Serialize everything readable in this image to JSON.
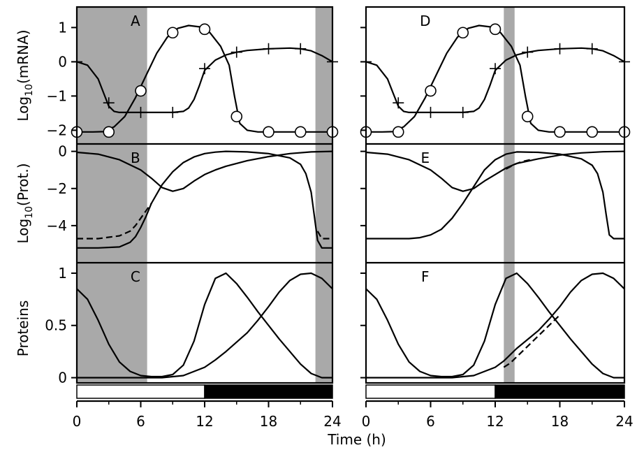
{
  "labels": {
    "x_axis": "Time (h)",
    "y_axis_row1": "Log",
    "y_axis_row1_sub": "10",
    "y_axis_row1_tail": "(mRNA)",
    "y_axis_row2": "Log",
    "y_axis_row2_sub": "10",
    "y_axis_row2_tail": "(Prot.)",
    "y_axis_row3": "Proteins"
  },
  "chart_data": {
    "type": "line",
    "x_ticks": [
      "0",
      "6",
      "12",
      "18",
      "24"
    ],
    "xlim": [
      0,
      24
    ],
    "y_ticks": {
      "mrna": [
        "1",
        "0",
        "−1",
        "−2"
      ],
      "prot": [
        "0",
        "−2",
        "−4"
      ],
      "proteins": [
        "1",
        "0.5",
        "0"
      ]
    },
    "ylim": {
      "mrna": [
        -2.4,
        1.6
      ],
      "prot": [
        -6,
        0.4
      ],
      "proteins": [
        -0.05,
        1.1
      ]
    },
    "light_dark_bar": {
      "left": {
        "light": [
          0,
          12
        ],
        "dark": [
          12,
          24
        ]
      },
      "right": {
        "light": [
          0,
          12
        ],
        "dark": [
          12,
          24
        ]
      }
    },
    "panels": [
      {
        "letter": "A",
        "row": "mrna",
        "side": "left",
        "shaded": [
          [
            0,
            6.6
          ],
          [
            22.4,
            24
          ]
        ],
        "series": [
          {
            "style": "solid",
            "marker": "circle",
            "x": [
              0,
              1.5,
              2.5,
              3.5,
              4.5,
              5.5,
              6.5,
              7.5,
              8.5,
              9.5,
              10.5,
              11.5,
              12.5,
              13.5,
              14.3,
              14.8,
              15.3,
              16,
              17,
              18,
              20,
              22,
              24
            ],
            "y": [
              -2.05,
              -2.05,
              -2.04,
              -1.9,
              -1.6,
              -1.05,
              -0.4,
              0.25,
              0.72,
              0.98,
              1.06,
              1.02,
              0.85,
              0.45,
              -0.1,
              -1.0,
              -1.8,
              -2.0,
              -2.05,
              -2.05,
              -2.05,
              -2.05,
              -2.05
            ],
            "marker_x": [
              0,
              3,
              6,
              9,
              12,
              15,
              18,
              21,
              24
            ],
            "marker_y": [
              -2.05,
              -2.05,
              -0.85,
              0.85,
              0.95,
              -1.6,
              -2.05,
              -2.05,
              -2.05
            ]
          },
          {
            "style": "solid",
            "marker": "plus",
            "x": [
              0,
              1,
              2,
              2.5,
              3,
              3.5,
              4,
              5,
              6,
              7,
              8,
              9,
              10,
              10.5,
              11,
              11.5,
              12,
              13,
              14,
              15,
              16,
              18,
              20,
              21,
              22,
              23,
              24
            ],
            "y": [
              0,
              -0.1,
              -0.5,
              -0.9,
              -1.3,
              -1.45,
              -1.48,
              -1.48,
              -1.48,
              -1.48,
              -1.48,
              -1.48,
              -1.45,
              -1.35,
              -1.1,
              -0.7,
              -0.25,
              0.05,
              0.2,
              0.28,
              0.33,
              0.38,
              0.4,
              0.38,
              0.32,
              0.18,
              0.0
            ],
            "marker_x": [
              0,
              3,
              6,
              9,
              12,
              15,
              18,
              21,
              24
            ],
            "marker_y": [
              0,
              -1.2,
              -1.48,
              -1.48,
              -0.2,
              0.28,
              0.38,
              0.38,
              0
            ]
          }
        ]
      },
      {
        "letter": "D",
        "row": "mrna",
        "side": "right",
        "shaded": [
          [
            12.8,
            13.8
          ]
        ],
        "series": [
          {
            "style": "solid",
            "marker": "circle",
            "x": [
              0,
              1.5,
              2.5,
              3.5,
              4.5,
              5.5,
              6.5,
              7.5,
              8.5,
              9.5,
              10.5,
              11.5,
              12.5,
              13.5,
              14.3,
              14.8,
              15.3,
              16,
              17,
              18,
              20,
              22,
              24
            ],
            "y": [
              -2.05,
              -2.05,
              -2.04,
              -1.9,
              -1.6,
              -1.05,
              -0.4,
              0.25,
              0.72,
              0.98,
              1.06,
              1.02,
              0.85,
              0.45,
              -0.1,
              -1.0,
              -1.8,
              -2.0,
              -2.05,
              -2.05,
              -2.05,
              -2.05,
              -2.05
            ],
            "marker_x": [
              0,
              3,
              6,
              9,
              12,
              15,
              18,
              21,
              24
            ],
            "marker_y": [
              -2.05,
              -2.05,
              -0.85,
              0.85,
              0.95,
              -1.6,
              -2.05,
              -2.05,
              -2.05
            ]
          },
          {
            "style": "solid",
            "marker": "plus",
            "x": [
              0,
              1,
              2,
              2.5,
              3,
              3.5,
              4,
              5,
              6,
              7,
              8,
              9,
              10,
              10.5,
              11,
              11.5,
              12,
              13,
              14,
              15,
              16,
              18,
              20,
              21,
              22,
              23,
              24
            ],
            "y": [
              0,
              -0.1,
              -0.5,
              -0.9,
              -1.3,
              -1.45,
              -1.48,
              -1.48,
              -1.48,
              -1.48,
              -1.48,
              -1.48,
              -1.45,
              -1.35,
              -1.1,
              -0.7,
              -0.25,
              0.05,
              0.2,
              0.28,
              0.33,
              0.38,
              0.4,
              0.38,
              0.32,
              0.18,
              0.0
            ],
            "marker_x": [
              0,
              3,
              6,
              9,
              12,
              15,
              18,
              21,
              24
            ],
            "marker_y": [
              0,
              -1.2,
              -1.48,
              -1.48,
              -0.2,
              0.28,
              0.38,
              0.38,
              0
            ]
          }
        ]
      },
      {
        "letter": "B",
        "row": "prot",
        "side": "left",
        "shaded": [
          [
            0,
            6.6
          ],
          [
            22.4,
            24
          ]
        ],
        "series": [
          {
            "style": "solid",
            "x": [
              0,
              2,
              4,
              6,
              7,
              8,
              9,
              10,
              11,
              12,
              13,
              14,
              16,
              18,
              20,
              22,
              24
            ],
            "y": [
              -0.05,
              -0.15,
              -0.45,
              -1.0,
              -1.45,
              -1.95,
              -2.15,
              -2.0,
              -1.6,
              -1.25,
              -1.0,
              -0.8,
              -0.5,
              -0.28,
              -0.12,
              -0.03,
              0.0
            ]
          },
          {
            "style": "solid",
            "x": [
              0,
              2,
              4,
              5,
              5.5,
              6,
              6.5,
              7,
              8,
              9,
              10,
              11,
              12,
              13,
              14,
              16,
              18,
              20,
              21,
              21.5,
              22,
              22.3,
              22.6,
              23,
              24
            ],
            "y": [
              -5.2,
              -5.2,
              -5.15,
              -4.9,
              -4.6,
              -4.1,
              -3.5,
              -2.8,
              -1.8,
              -1.1,
              -0.6,
              -0.3,
              -0.12,
              -0.04,
              0.0,
              -0.03,
              -0.12,
              -0.35,
              -0.7,
              -1.2,
              -2.2,
              -3.5,
              -4.8,
              -5.2,
              -5.2
            ]
          },
          {
            "style": "dashed",
            "x": [
              0,
              2,
              4,
              5,
              5.5,
              6,
              6.5,
              7
            ],
            "y": [
              -4.7,
              -4.7,
              -4.55,
              -4.3,
              -4.0,
              -3.6,
              -3.2,
              -2.8
            ]
          },
          {
            "style": "dashed",
            "x": [
              22.6,
              23,
              24
            ],
            "y": [
              -4.3,
              -4.7,
              -4.7
            ]
          }
        ]
      },
      {
        "letter": "E",
        "row": "prot",
        "side": "right",
        "shaded": [
          [
            12.8,
            13.8
          ]
        ],
        "series": [
          {
            "style": "solid",
            "x": [
              0,
              2,
              4,
              6,
              7,
              8,
              9,
              10,
              11,
              12,
              13,
              14,
              16,
              18,
              20,
              22,
              24
            ],
            "y": [
              -0.05,
              -0.15,
              -0.45,
              -1.0,
              -1.45,
              -1.95,
              -2.15,
              -2.0,
              -1.6,
              -1.25,
              -0.9,
              -0.65,
              -0.4,
              -0.2,
              -0.08,
              -0.02,
              0.0
            ]
          },
          {
            "style": "solid",
            "x": [
              0,
              4,
              5,
              6,
              7,
              8,
              9,
              10,
              11,
              12,
              13,
              14,
              16,
              18,
              20,
              21,
              21.5,
              22,
              22.3,
              22.6,
              23,
              24
            ],
            "y": [
              -4.7,
              -4.7,
              -4.65,
              -4.5,
              -4.2,
              -3.6,
              -2.8,
              -1.9,
              -1.0,
              -0.45,
              -0.15,
              -0.03,
              -0.05,
              -0.15,
              -0.4,
              -0.75,
              -1.2,
              -2.2,
              -3.4,
              -4.5,
              -4.7,
              -4.7
            ]
          },
          {
            "style": "dashed",
            "x": [
              13,
              13.8,
              14.5,
              15.5
            ],
            "y": [
              -0.95,
              -0.7,
              -0.55,
              -0.42
            ]
          }
        ]
      },
      {
        "letter": "C",
        "row": "proteins",
        "side": "left",
        "shaded": [
          [
            0,
            6.6
          ],
          [
            22.4,
            24
          ]
        ],
        "series": [
          {
            "style": "solid",
            "x": [
              0,
              1,
              2,
              3,
              4,
              5,
              6,
              7,
              8,
              9,
              10,
              11,
              12,
              13,
              14,
              15,
              16,
              17,
              18,
              19,
              20,
              21,
              22,
              23,
              24
            ],
            "y": [
              0.85,
              0.75,
              0.55,
              0.32,
              0.15,
              0.06,
              0.02,
              0.01,
              0.01,
              0.03,
              0.12,
              0.35,
              0.7,
              0.95,
              1.0,
              0.9,
              0.77,
              0.63,
              0.5,
              0.37,
              0.25,
              0.13,
              0.04,
              0.0,
              0.0
            ]
          },
          {
            "style": "solid",
            "x": [
              0,
              2,
              4,
              6,
              8,
              10,
              12,
              13,
              14,
              16,
              17,
              18,
              19,
              20,
              21,
              22,
              23,
              24
            ],
            "y": [
              0.0,
              0.0,
              0.0,
              0.0,
              0.0,
              0.02,
              0.1,
              0.17,
              0.25,
              0.43,
              0.55,
              0.68,
              0.82,
              0.93,
              0.99,
              1.0,
              0.95,
              0.85
            ]
          }
        ]
      },
      {
        "letter": "F",
        "row": "proteins",
        "side": "right",
        "shaded": [
          [
            12.8,
            13.8
          ]
        ],
        "series": [
          {
            "style": "solid",
            "x": [
              0,
              1,
              2,
              3,
              4,
              5,
              6,
              7,
              8,
              9,
              10,
              11,
              12,
              13,
              14,
              15,
              16,
              17,
              18,
              19,
              20,
              21,
              22,
              23,
              24
            ],
            "y": [
              0.85,
              0.75,
              0.55,
              0.32,
              0.15,
              0.06,
              0.02,
              0.01,
              0.01,
              0.03,
              0.12,
              0.35,
              0.7,
              0.95,
              1.0,
              0.9,
              0.77,
              0.63,
              0.5,
              0.37,
              0.25,
              0.13,
              0.04,
              0.0,
              0.0
            ]
          },
          {
            "style": "solid",
            "x": [
              0,
              2,
              4,
              6,
              8,
              10,
              12,
              12.8,
              13.4,
              14,
              16,
              17,
              18,
              19,
              20,
              21,
              22,
              23,
              24
            ],
            "y": [
              0.0,
              0.0,
              0.0,
              0.0,
              0.0,
              0.02,
              0.1,
              0.16,
              0.22,
              0.28,
              0.45,
              0.56,
              0.68,
              0.82,
              0.93,
              0.99,
              1.0,
              0.95,
              0.85
            ]
          },
          {
            "style": "dashed",
            "x": [
              12.8,
              13.4,
              14,
              15,
              16,
              17,
              18
            ],
            "y": [
              0.1,
              0.14,
              0.2,
              0.3,
              0.4,
              0.5,
              0.6
            ]
          }
        ]
      }
    ]
  }
}
